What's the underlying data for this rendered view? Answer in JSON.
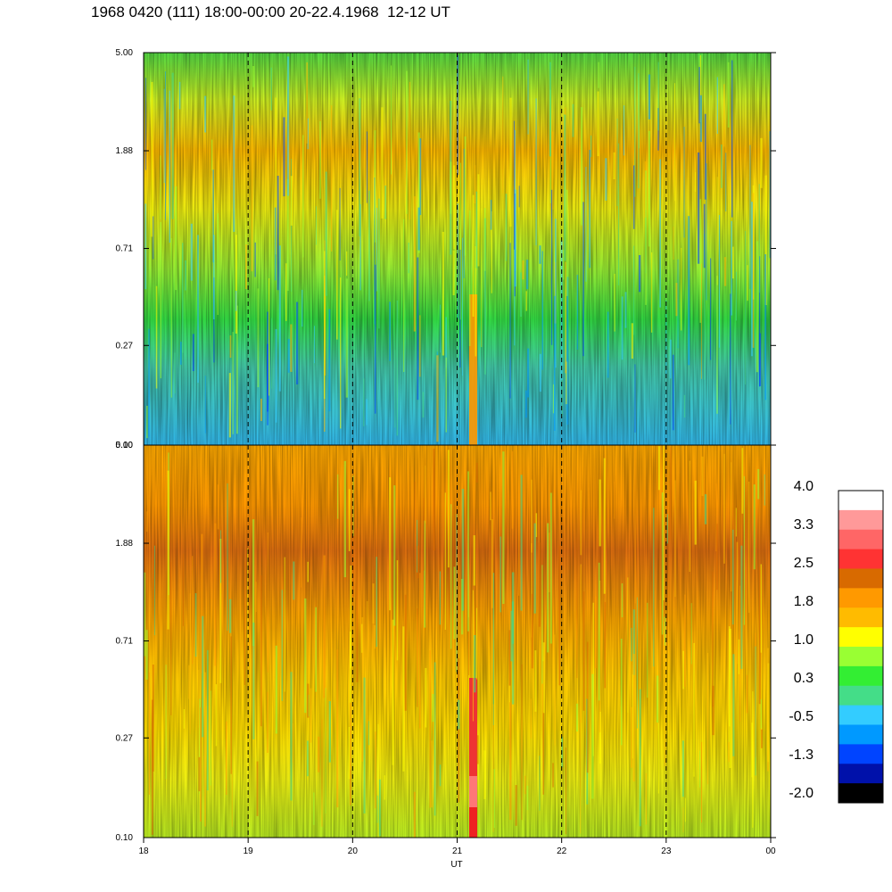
{
  "title": "1968 0420 (111) 18:00-00:00 20-22.4.1968  12-12 UT",
  "chart_data": [
    {
      "type": "heatmap",
      "panel": "top",
      "x_range": [
        18,
        24
      ],
      "y_ticks": [
        "5.00",
        "1.88",
        "0.71",
        "0.27",
        "0.10"
      ],
      "y_range": [
        0.1,
        5.0
      ],
      "log_y": true,
      "dashed_hours": [
        19,
        20,
        21,
        22,
        23
      ]
    },
    {
      "type": "heatmap",
      "panel": "bottom",
      "x_range": [
        18,
        24
      ],
      "y_ticks": [
        "5.00",
        "1.88",
        "0.71",
        "0.27",
        "0.10"
      ],
      "y_range": [
        0.1,
        5.0
      ],
      "log_y": true,
      "dashed_hours": [
        19,
        20,
        21,
        22,
        23
      ],
      "x_ticks": [
        "18",
        "19",
        "20",
        "21",
        "22",
        "23",
        "00"
      ],
      "xlabel": "UT"
    }
  ],
  "colorbar": {
    "labels": [
      "4.0",
      "3.3",
      "2.5",
      "1.8",
      "1.0",
      "0.3",
      "-0.5",
      "-1.3",
      "-2.0"
    ],
    "colors": [
      "#ffffff",
      "#ff9999",
      "#ff6666",
      "#ff3333",
      "#d86a00",
      "#ff9900",
      "#ffbb00",
      "#ffff00",
      "#99ff33",
      "#33ee33",
      "#44dd88",
      "#33ccff",
      "#0099ff",
      "#0044ff",
      "#0011aa",
      "#000000"
    ]
  }
}
